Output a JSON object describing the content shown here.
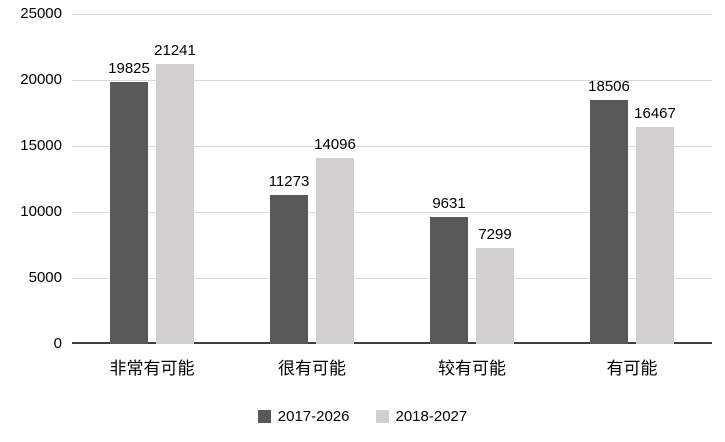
{
  "chart_data": {
    "type": "bar",
    "title": "",
    "xlabel": "",
    "ylabel": "",
    "categories": [
      "非常有可能",
      "很有可能",
      "较有可能",
      "有可能"
    ],
    "series": [
      {
        "name": "2017-2026",
        "color": "#595959",
        "values": [
          19825,
          11273,
          9631,
          18506
        ]
      },
      {
        "name": "2018-2027",
        "color": "#d0cece",
        "values": [
          21241,
          14096,
          7299,
          16467
        ]
      }
    ],
    "ylim": [
      0,
      25000
    ],
    "yticks": [
      0,
      5000,
      10000,
      15000,
      20000,
      25000
    ],
    "grid": true,
    "data_labels": true,
    "legend_position": "bottom",
    "colors": {
      "gridline": "#d9d9d9",
      "axis_line": "#404040",
      "text": "#000000",
      "background": "#ffffff"
    }
  }
}
